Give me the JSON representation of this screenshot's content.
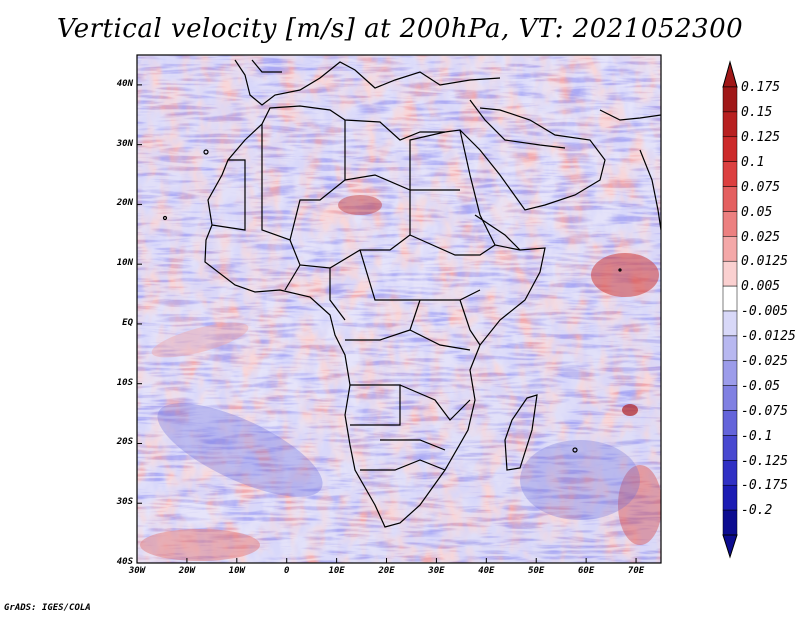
{
  "title": "Vertical velocity [m/s] at 200hPa, VT: 2021052300",
  "credit": "GrADS: IGES/COLA",
  "axes": {
    "lat_labels": [
      "40N",
      "30N",
      "20N",
      "10N",
      "EQ",
      "10S",
      "20S",
      "30S",
      "40S"
    ],
    "lon_labels": [
      "30W",
      "20W",
      "10W",
      "0",
      "10E",
      "20E",
      "30E",
      "40E",
      "50E",
      "60E",
      "70E"
    ]
  },
  "colorbar": {
    "levels": [
      "0.175",
      "0.15",
      "0.125",
      "0.1",
      "0.075",
      "0.05",
      "0.025",
      "0.0125",
      "0.005",
      "-0.005",
      "-0.0125",
      "-0.025",
      "-0.05",
      "-0.075",
      "-0.1",
      "-0.125",
      "-0.175",
      "-0.2"
    ],
    "colors": [
      "#a01818",
      "#b82020",
      "#cc2a2a",
      "#dc4040",
      "#e46060",
      "#ec8080",
      "#f4a8a8",
      "#fad0d0",
      "#ffffff",
      "#d8d8f8",
      "#b8b8f0",
      "#9c9cea",
      "#8080e2",
      "#6464da",
      "#4848d0",
      "#3030c4",
      "#1c1cb4",
      "#0c0c90"
    ]
  },
  "chart_data": {
    "type": "heatmap",
    "title": "Vertical velocity [m/s] at 200hPa, VT: 2021052300",
    "variable": "Vertical velocity",
    "units": "m/s",
    "level": "200hPa",
    "valid_time": "2021052300",
    "x_range_deg": [
      -30,
      75
    ],
    "y_range_deg": [
      -40,
      45
    ],
    "colorbar_levels": [
      0.175,
      0.15,
      0.125,
      0.1,
      0.075,
      0.05,
      0.025,
      0.0125,
      0.005,
      -0.005,
      -0.0125,
      -0.025,
      -0.05,
      -0.075,
      -0.1,
      -0.125,
      -0.175,
      -0.2
    ]
  }
}
